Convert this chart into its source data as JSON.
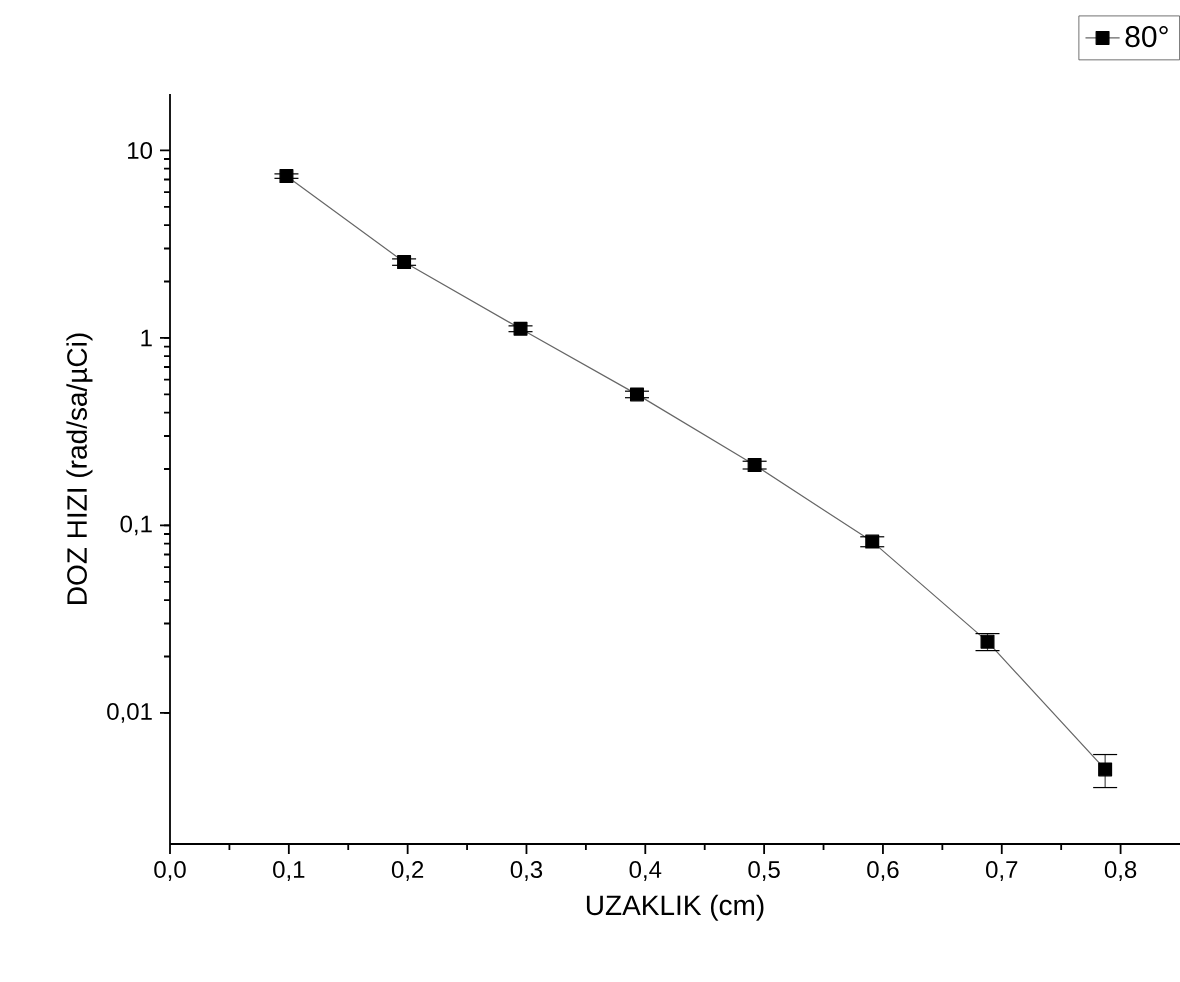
{
  "chart_data": {
    "type": "line",
    "xlabel": "UZAKLIK (cm)",
    "ylabel": "DOZ HIZI (rad/sa/µCi)",
    "x": [
      0.098,
      0.197,
      0.295,
      0.393,
      0.492,
      0.591,
      0.688,
      0.787
    ],
    "series": [
      {
        "name": "80°",
        "color": "#000000",
        "values": [
          7.3,
          2.54,
          1.12,
          0.5,
          0.21,
          0.082,
          0.024,
          0.005
        ],
        "errors": [
          0.2,
          0.1,
          0.04,
          0.02,
          0.01,
          0.005,
          0.0025,
          0.001
        ]
      }
    ],
    "xlim": [
      0,
      0.85
    ],
    "ylim": [
      0.002,
      20
    ],
    "xticks": [
      {
        "value": 0,
        "label": "0,0"
      },
      {
        "value": 0.1,
        "label": "0,1"
      },
      {
        "value": 0.2,
        "label": "0,2"
      },
      {
        "value": 0.3,
        "label": "0,3"
      },
      {
        "value": 0.4,
        "label": "0,4"
      },
      {
        "value": 0.5,
        "label": "0,5"
      },
      {
        "value": 0.6,
        "label": "0,6"
      },
      {
        "value": 0.7,
        "label": "0,7"
      },
      {
        "value": 0.8,
        "label": "0,8"
      }
    ],
    "yticks": [
      {
        "value": 0.01,
        "label": "0,01"
      },
      {
        "value": 0.1,
        "label": "0,1"
      },
      1,
      10
    ],
    "log": "y",
    "grid": false,
    "legend": "top right",
    "marker": "square",
    "line_style": "solid"
  }
}
